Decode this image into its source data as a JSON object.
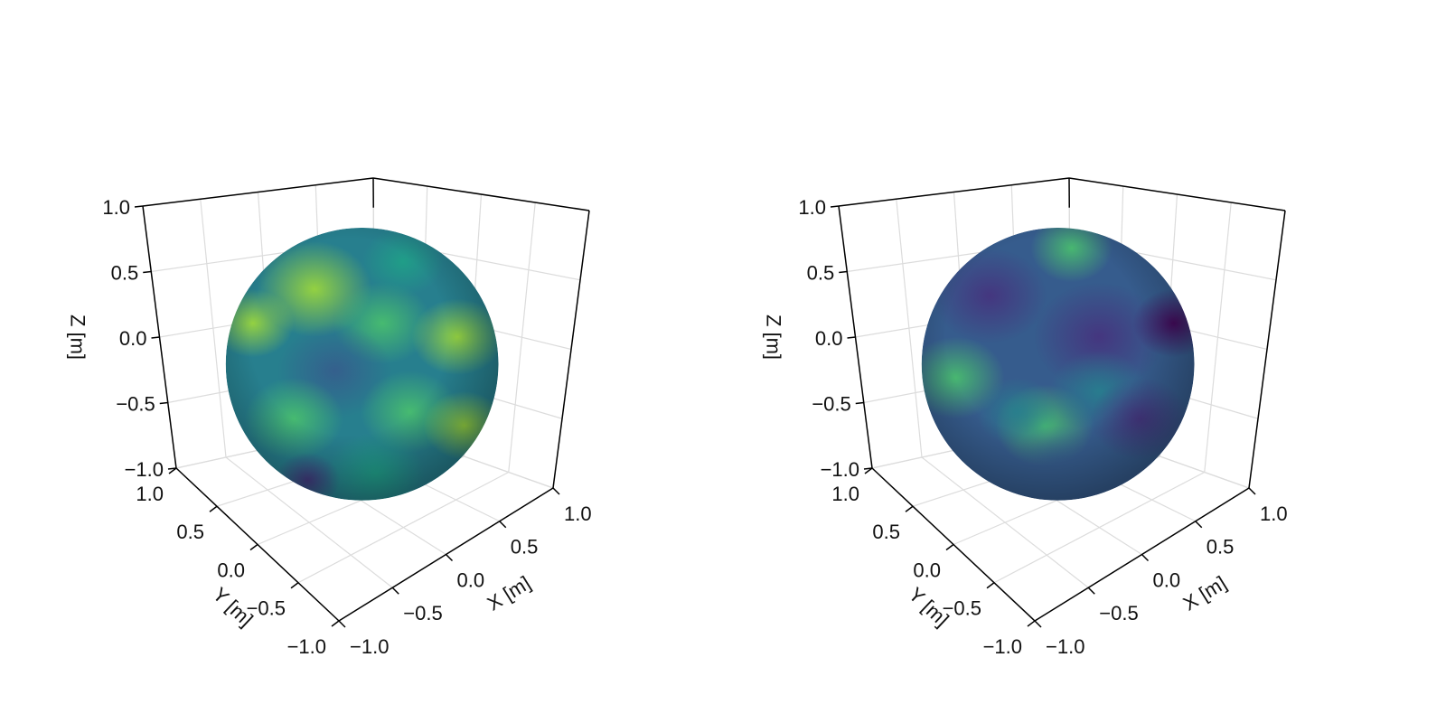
{
  "chart_data": [
    {
      "type": "surface3d",
      "surface": "sphere",
      "radius": 1,
      "colormap": "viridis",
      "xlabel": "X [m]",
      "ylabel": "Y [m]",
      "zlabel": "Z [m]",
      "xlim": [
        -1,
        1
      ],
      "ylim": [
        -1,
        1
      ],
      "zlim": [
        -1,
        1
      ],
      "xticks": [
        {
          "value": -1,
          "label": "−1.0"
        },
        {
          "value": -0.5,
          "label": "−0.5"
        },
        {
          "value": 0,
          "label": "0.0"
        },
        {
          "value": 0.5,
          "label": "0.5"
        },
        {
          "value": 1,
          "label": "1.0"
        }
      ],
      "yticks": [
        {
          "value": -1,
          "label": "−1.0"
        },
        {
          "value": -0.5,
          "label": "−0.5"
        },
        {
          "value": 0,
          "label": "0.0"
        },
        {
          "value": 0.5,
          "label": "0.5"
        },
        {
          "value": 1,
          "label": "1.0"
        }
      ],
      "zticks": [
        {
          "value": -1,
          "label": "−1.0"
        },
        {
          "value": -0.5,
          "label": "−0.5"
        },
        {
          "value": 0,
          "label": "0.0"
        },
        {
          "value": 0.5,
          "label": "0.5"
        },
        {
          "value": 1,
          "label": "1.0"
        }
      ],
      "grid": true
    },
    {
      "type": "surface3d",
      "surface": "sphere",
      "radius": 1,
      "colormap": "viridis",
      "xlabel": "X [m]",
      "ylabel": "Y [m]",
      "zlabel": "Z [m]",
      "xlim": [
        -1,
        1
      ],
      "ylim": [
        -1,
        1
      ],
      "zlim": [
        -1,
        1
      ],
      "xticks": [
        {
          "value": -1,
          "label": "−1.0"
        },
        {
          "value": -0.5,
          "label": "−0.5"
        },
        {
          "value": 0,
          "label": "0.0"
        },
        {
          "value": 0.5,
          "label": "0.5"
        },
        {
          "value": 1,
          "label": "1.0"
        }
      ],
      "yticks": [
        {
          "value": -1,
          "label": "−1.0"
        },
        {
          "value": -0.5,
          "label": "−0.5"
        },
        {
          "value": 0,
          "label": "0.0"
        },
        {
          "value": 0.5,
          "label": "0.5"
        },
        {
          "value": 1,
          "label": "1.0"
        }
      ],
      "zticks": [
        {
          "value": -1,
          "label": "−1.0"
        },
        {
          "value": -0.5,
          "label": "−0.5"
        },
        {
          "value": 0,
          "label": "0.0"
        },
        {
          "value": 0.5,
          "label": "0.5"
        },
        {
          "value": 1,
          "label": "1.0"
        }
      ],
      "grid": true
    }
  ]
}
